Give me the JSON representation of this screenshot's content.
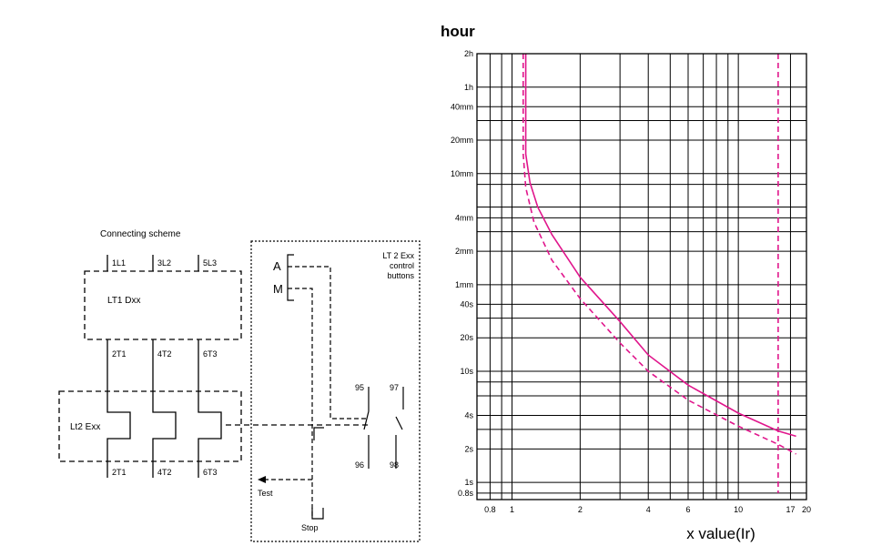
{
  "schematic": {
    "title": "Connecting scheme",
    "top_terminals": [
      "1L1",
      "3L2",
      "5L3"
    ],
    "relay1_label": "LT1 Dxx",
    "mid_terminals": [
      "2T1",
      "4T2",
      "6T3"
    ],
    "relay2_label": "Lt2 Exx",
    "bottom_terminals": [
      "2T1",
      "4T2",
      "6T3"
    ],
    "control_box": {
      "title_lines": [
        "LT 2 Exx",
        "control",
        "buttons"
      ],
      "mode_a": "A",
      "mode_m": "M",
      "contacts_top": [
        "95",
        "97"
      ],
      "contacts_bottom": [
        "96",
        "98"
      ],
      "test_label": "Test",
      "stop_label": "Stop"
    }
  },
  "chart_data": {
    "type": "line",
    "ylabel": "hour",
    "xlabel": "x value(Ir)",
    "x_scale": "log",
    "y_scale": "log",
    "xlim": [
      0.7,
      20
    ],
    "ylim_seconds": [
      0.7,
      7200
    ],
    "x_ticks": [
      {
        "v": 0.8,
        "label": "0.8"
      },
      {
        "v": 1,
        "label": "1"
      },
      {
        "v": 2,
        "label": "2"
      },
      {
        "v": 4,
        "label": "4"
      },
      {
        "v": 6,
        "label": "6"
      },
      {
        "v": 10,
        "label": "10"
      },
      {
        "v": 17,
        "label": "17"
      },
      {
        "v": 20,
        "label": "20"
      }
    ],
    "y_ticks": [
      {
        "s": 7200,
        "label": "2h"
      },
      {
        "s": 3600,
        "label": "1h"
      },
      {
        "s": 2400,
        "label": "40mm"
      },
      {
        "s": 1200,
        "label": "20mm"
      },
      {
        "s": 600,
        "label": "10mm"
      },
      {
        "s": 240,
        "label": "4mm"
      },
      {
        "s": 120,
        "label": "2mm"
      },
      {
        "s": 60,
        "label": "1mm"
      },
      {
        "s": 40,
        "label": "40s"
      },
      {
        "s": 20,
        "label": "20s"
      },
      {
        "s": 10,
        "label": "10s"
      },
      {
        "s": 4,
        "label": "4s"
      },
      {
        "s": 2,
        "label": "2s"
      },
      {
        "s": 1,
        "label": "1s"
      },
      {
        "s": 0.8,
        "label": "0.8s"
      }
    ],
    "curve_color": "#e0168c",
    "series": [
      {
        "style": "solid",
        "points": [
          [
            1.15,
            7200
          ],
          [
            1.15,
            900
          ],
          [
            1.2,
            500
          ],
          [
            1.3,
            300
          ],
          [
            1.5,
            170
          ],
          [
            2,
            70
          ],
          [
            3,
            28
          ],
          [
            4,
            14
          ],
          [
            6,
            7.5
          ],
          [
            10,
            4.2
          ],
          [
            15,
            2.9
          ],
          [
            18,
            2.6
          ]
        ]
      },
      {
        "style": "dashed",
        "points": [
          [
            1.12,
            7200
          ],
          [
            1.12,
            900
          ],
          [
            1.15,
            450
          ],
          [
            1.25,
            220
          ],
          [
            1.5,
            100
          ],
          [
            2,
            45
          ],
          [
            3,
            18
          ],
          [
            4,
            10
          ],
          [
            6,
            5.5
          ],
          [
            10,
            3.2
          ],
          [
            15,
            2.2
          ],
          [
            18,
            1.8
          ]
        ]
      },
      {
        "style": "dashed",
        "points": [
          [
            15,
            7200
          ],
          [
            15,
            0.8
          ]
        ]
      }
    ]
  }
}
